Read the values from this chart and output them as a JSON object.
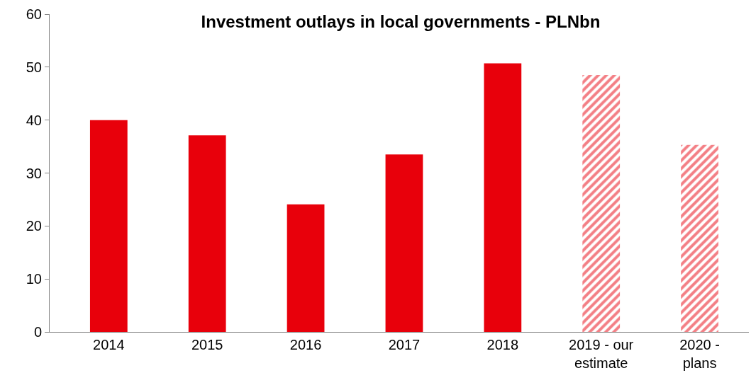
{
  "chart_data": {
    "type": "bar",
    "title": "Investment outlays in local governments - PLNbn",
    "categories": [
      "2014",
      "2015",
      "2016",
      "2017",
      "2018",
      "2019 - our estimate",
      "2020 - plans"
    ],
    "series": [
      {
        "color": "#e8000b",
        "values": [
          40,
          37.1,
          24.1,
          33.5,
          50.7,
          null,
          null
        ]
      },
      {
        "color": "#e8000b",
        "values": [
          null,
          null,
          null,
          null,
          null,
          48.5,
          35.3
        ]
      }
    ],
    "ylim": [
      0,
      60
    ],
    "yticks": [
      0,
      10,
      20,
      30,
      40,
      50,
      60
    ]
  }
}
